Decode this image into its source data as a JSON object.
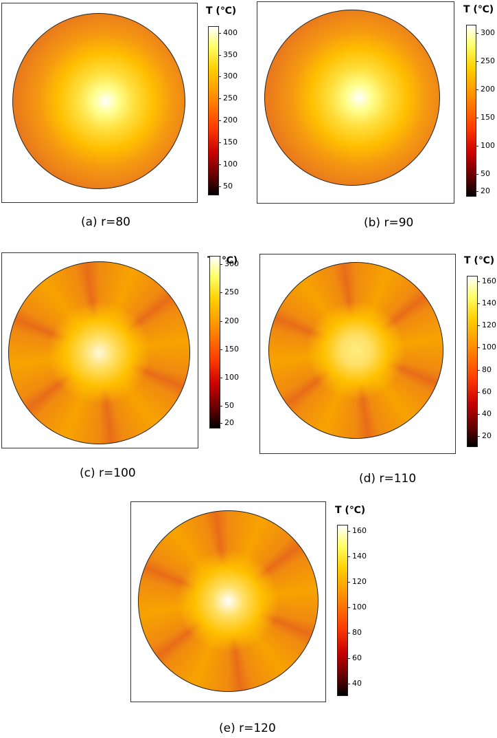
{
  "chart_data": [
    {
      "type": "heatmap",
      "caption": "(a) r=80",
      "colorbar_title": "T (℃)",
      "colorbar_ticks": [
        400,
        350,
        300,
        250,
        200,
        150,
        100,
        50
      ],
      "colorbar_range": [
        30,
        415
      ],
      "peak_location": "center",
      "pattern": "smooth",
      "center_color": "#ffffff"
    },
    {
      "type": "heatmap",
      "caption": "(b) r=90",
      "colorbar_title": "T (℃)",
      "colorbar_ticks": [
        300,
        250,
        200,
        150,
        100,
        50,
        20
      ],
      "colorbar_range": [
        10,
        315
      ],
      "peak_location": "center",
      "pattern": "smooth",
      "center_color": "#ffffff"
    },
    {
      "type": "heatmap",
      "caption": "(c) r=100",
      "colorbar_title": "T (℃)",
      "colorbar_ticks": [
        300,
        250,
        200,
        150,
        100,
        50,
        20
      ],
      "colorbar_range": [
        10,
        315
      ],
      "peak_location": "center",
      "pattern": "petals",
      "center_color": "#fff8dc"
    },
    {
      "type": "heatmap",
      "caption": "(d) r=110",
      "colorbar_title": "T (℃)",
      "colorbar_ticks": [
        160,
        140,
        120,
        100,
        80,
        60,
        40,
        20
      ],
      "colorbar_range": [
        10,
        165
      ],
      "peak_location": "center",
      "pattern": "petals",
      "center_color": "#ffec80"
    },
    {
      "type": "heatmap",
      "caption": "(e) r=120",
      "colorbar_title": "T (℃)",
      "colorbar_ticks": [
        160,
        140,
        120,
        100,
        80,
        60,
        40
      ],
      "colorbar_range": [
        30,
        165
      ],
      "peak_location": "center",
      "pattern": "petals",
      "center_color": "#ffffff"
    }
  ]
}
